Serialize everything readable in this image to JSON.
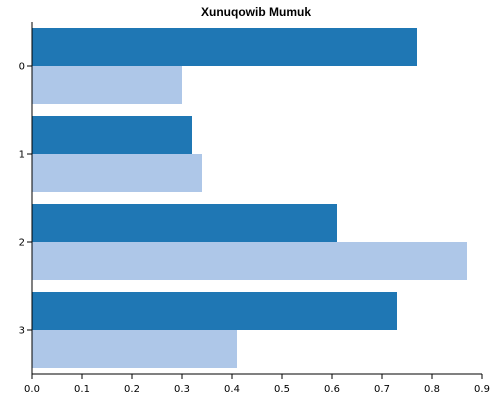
{
  "chart_data": {
    "type": "bar",
    "orientation": "horizontal",
    "title": "Xunuqowib Mumuk",
    "xlabel": "",
    "ylabel": "",
    "categories": [
      "0",
      "1",
      "2",
      "3"
    ],
    "xlim": [
      0,
      0.9
    ],
    "xticks": [
      "0.0",
      "0.1",
      "0.2",
      "0.3",
      "0.4",
      "0.5",
      "0.6",
      "0.7",
      "0.8",
      "0.9"
    ],
    "grid": false,
    "series": [
      {
        "values": [
          0.77,
          0.32,
          0.61,
          0.73
        ],
        "color": "#1f77b4"
      },
      {
        "values": [
          0.3,
          0.34,
          0.87,
          0.41
        ],
        "color": "#aec7e8"
      }
    ]
  }
}
